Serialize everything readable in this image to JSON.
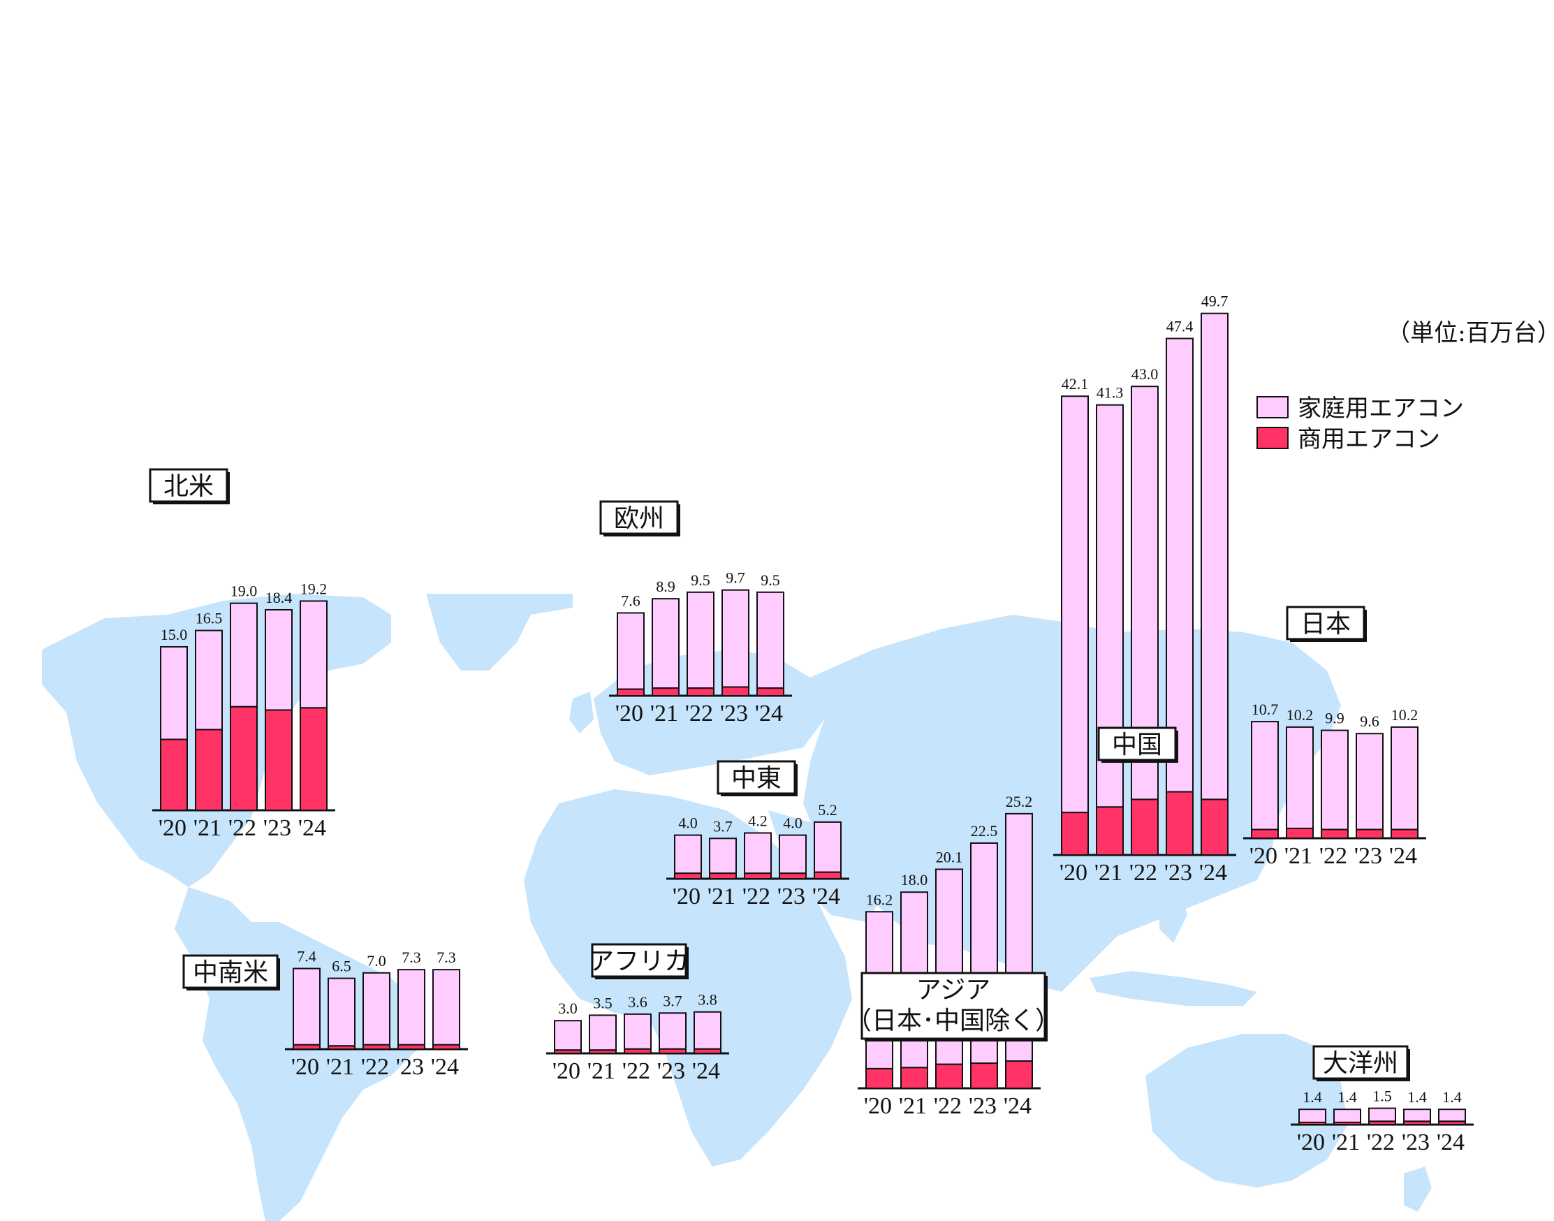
{
  "unit_label": "（単位:百万台）",
  "legend": [
    {
      "label": "家庭用エアコン",
      "color": "#ffccff"
    },
    {
      "label": "商用エアコン",
      "color": "#ff3366"
    }
  ],
  "chart_data": [
    {
      "type": "bar",
      "stacked": true,
      "title": "北米",
      "categories": [
        "'20",
        "'21",
        "'22",
        "'23",
        "'24"
      ],
      "totals": [
        15.0,
        16.5,
        19.0,
        18.4,
        19.2
      ],
      "series": [
        {
          "name": "商用エアコン",
          "values": [
            6.5,
            7.4,
            9.5,
            9.2,
            9.4
          ]
        },
        {
          "name": "家庭用エアコン",
          "values": [
            8.5,
            9.1,
            9.5,
            9.2,
            9.8
          ]
        }
      ]
    },
    {
      "type": "bar",
      "stacked": true,
      "title": "中南米",
      "categories": [
        "'20",
        "'21",
        "'22",
        "'23",
        "'24"
      ],
      "totals": [
        7.4,
        6.5,
        7.0,
        7.3,
        7.3
      ],
      "series": [
        {
          "name": "商用エアコン",
          "values": [
            0.4,
            0.3,
            0.4,
            0.4,
            0.4
          ]
        },
        {
          "name": "家庭用エアコン",
          "values": [
            7.0,
            6.2,
            6.6,
            6.9,
            6.9
          ]
        }
      ]
    },
    {
      "type": "bar",
      "stacked": true,
      "title": "欧州",
      "categories": [
        "'20",
        "'21",
        "'22",
        "'23",
        "'24"
      ],
      "totals": [
        7.6,
        8.9,
        9.5,
        9.7,
        9.5
      ],
      "series": [
        {
          "name": "商用エアコン",
          "values": [
            0.6,
            0.7,
            0.7,
            0.8,
            0.7
          ]
        },
        {
          "name": "家庭用エアコン",
          "values": [
            7.0,
            8.2,
            8.8,
            8.9,
            8.8
          ]
        }
      ]
    },
    {
      "type": "bar",
      "stacked": true,
      "title": "中東",
      "categories": [
        "'20",
        "'21",
        "'22",
        "'23",
        "'24"
      ],
      "totals": [
        4.0,
        3.7,
        4.2,
        4.0,
        5.2
      ],
      "series": [
        {
          "name": "商用エアコン",
          "values": [
            0.5,
            0.5,
            0.5,
            0.5,
            0.6
          ]
        },
        {
          "name": "家庭用エアコン",
          "values": [
            3.5,
            3.2,
            3.7,
            3.5,
            4.6
          ]
        }
      ]
    },
    {
      "type": "bar",
      "stacked": true,
      "title": "アフリカ",
      "categories": [
        "'20",
        "'21",
        "'22",
        "'23",
        "'24"
      ],
      "totals": [
        3.0,
        3.5,
        3.6,
        3.7,
        3.8
      ],
      "series": [
        {
          "name": "商用エアコン",
          "values": [
            0.3,
            0.3,
            0.4,
            0.4,
            0.4
          ]
        },
        {
          "name": "家庭用エアコン",
          "values": [
            2.7,
            3.2,
            3.2,
            3.3,
            3.4
          ]
        }
      ]
    },
    {
      "type": "bar",
      "stacked": true,
      "title": "アジア\n（日本･中国除く）",
      "categories": [
        "'20",
        "'21",
        "'22",
        "'23",
        "'24"
      ],
      "totals": [
        16.2,
        18.0,
        20.1,
        22.5,
        25.2
      ],
      "series": [
        {
          "name": "商用エアコン",
          "values": [
            1.8,
            1.9,
            2.2,
            2.3,
            2.5
          ]
        },
        {
          "name": "家庭用エアコン",
          "values": [
            14.4,
            16.1,
            17.9,
            20.2,
            22.7
          ]
        }
      ]
    },
    {
      "type": "bar",
      "stacked": true,
      "title": "中国",
      "categories": [
        "'20",
        "'21",
        "'22",
        "'23",
        "'24"
      ],
      "totals": [
        42.1,
        41.3,
        43.0,
        47.4,
        49.7
      ],
      "series": [
        {
          "name": "商用エアコン",
          "values": [
            3.9,
            4.4,
            5.1,
            5.8,
            5.1
          ]
        },
        {
          "name": "家庭用エアコン",
          "values": [
            38.2,
            36.9,
            37.9,
            41.6,
            44.6
          ]
        }
      ]
    },
    {
      "type": "bar",
      "stacked": true,
      "title": "日本",
      "categories": [
        "'20",
        "'21",
        "'22",
        "'23",
        "'24"
      ],
      "totals": [
        10.7,
        10.2,
        9.9,
        9.6,
        10.2
      ],
      "series": [
        {
          "name": "商用エアコン",
          "values": [
            0.8,
            0.9,
            0.8,
            0.8,
            0.8
          ]
        },
        {
          "name": "家庭用エアコン",
          "values": [
            9.9,
            9.3,
            9.1,
            8.8,
            9.4
          ]
        }
      ]
    },
    {
      "type": "bar",
      "stacked": true,
      "title": "大洋州",
      "categories": [
        "'20",
        "'21",
        "'22",
        "'23",
        "'24"
      ],
      "totals": [
        1.4,
        1.4,
        1.5,
        1.4,
        1.4
      ],
      "series": [
        {
          "name": "商用エアコン",
          "values": [
            0.2,
            0.2,
            0.3,
            0.3,
            0.3
          ]
        },
        {
          "name": "家庭用エアコン",
          "values": [
            1.2,
            1.2,
            1.2,
            1.1,
            1.1
          ]
        }
      ]
    }
  ]
}
